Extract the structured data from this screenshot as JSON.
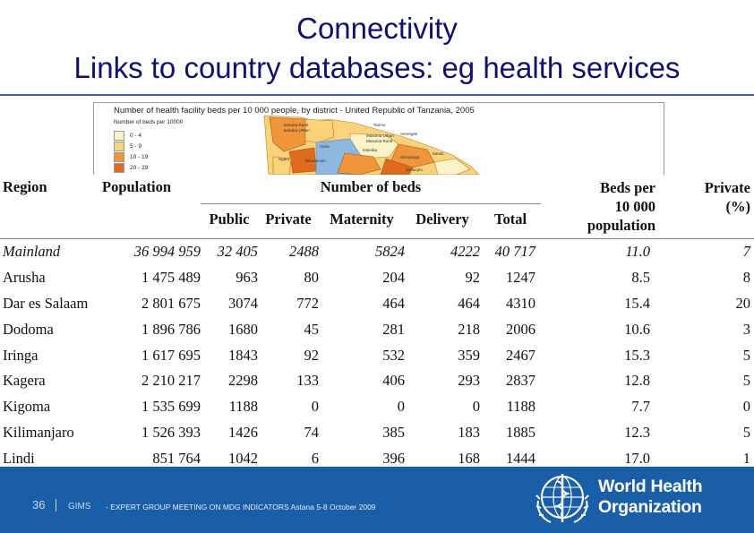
{
  "slide": {
    "title_line1": "Connectivity",
    "title_line2": "Links to country databases: eg health services"
  },
  "map": {
    "title": "Number of health facility beds per 10 000 people, by district - United Republic of Tanzania, 2005",
    "legend_title": "Number of beds per 10000",
    "legend": [
      {
        "label": "0 - 4",
        "color": "#fbf3c7"
      },
      {
        "label": "5 - 9",
        "color": "#f9d27a"
      },
      {
        "label": "10 - 19",
        "color": "#f0953a"
      },
      {
        "label": "20 - 29",
        "color": "#e06a1e"
      }
    ],
    "district_labels": [
      "Bukoba Rural",
      "Bukoba Urban",
      "Tarime",
      "Musoma Urban",
      "Musoma Rural",
      "Serengeti",
      "Geita",
      "Kwimba",
      "Shinyanga",
      "Meatu",
      "Ngara",
      "Biharamulo",
      "Simanjiro"
    ]
  },
  "table": {
    "headers": {
      "region": "Region",
      "population": "Population",
      "beds_group": "Number of beds",
      "public": "Public",
      "private": "Private",
      "maternity": "Maternity",
      "delivery": "Delivery",
      "total": "Total",
      "beds_per_line1": "Beds per",
      "beds_per_line2": "10 000",
      "beds_per_line3": "population",
      "private_pct_line1": "Private",
      "private_pct_line2": "(%)"
    },
    "rows": [
      {
        "region": "Mainland",
        "population": "36 994 959",
        "public": "32 405",
        "private": "2488",
        "maternity": "5824",
        "delivery": "4222",
        "total": "40 717",
        "beds_per": "11.0",
        "private_pct": "7"
      },
      {
        "region": "Arusha",
        "population": "1 475 489",
        "public": "963",
        "private": "80",
        "maternity": "204",
        "delivery": "92",
        "total": "1247",
        "beds_per": "8.5",
        "private_pct": "8"
      },
      {
        "region": "Dar es Salaam",
        "population": "2 801 675",
        "public": "3074",
        "private": "772",
        "maternity": "464",
        "delivery": "464",
        "total": "4310",
        "beds_per": "15.4",
        "private_pct": "20"
      },
      {
        "region": "Dodoma",
        "population": "1 896 786",
        "public": "1680",
        "private": "45",
        "maternity": "281",
        "delivery": "218",
        "total": "2006",
        "beds_per": "10.6",
        "private_pct": "3"
      },
      {
        "region": "Iringa",
        "population": "1 617 695",
        "public": "1843",
        "private": "92",
        "maternity": "532",
        "delivery": "359",
        "total": "2467",
        "beds_per": "15.3",
        "private_pct": "5"
      },
      {
        "region": "Kagera",
        "population": "2 210 217",
        "public": "2298",
        "private": "133",
        "maternity": "406",
        "delivery": "293",
        "total": "2837",
        "beds_per": "12.8",
        "private_pct": "5"
      },
      {
        "region": "Kigoma",
        "population": "1 535 699",
        "public": "1188",
        "private": "0",
        "maternity": "0",
        "delivery": "0",
        "total": "1188",
        "beds_per": "7.7",
        "private_pct": "0"
      },
      {
        "region": "Kilimanjaro",
        "population": "1 526 393",
        "public": "1426",
        "private": "74",
        "maternity": "385",
        "delivery": "183",
        "total": "1885",
        "beds_per": "12.3",
        "private_pct": "5"
      },
      {
        "region": "Lindi",
        "population": "851 764",
        "public": "1042",
        "private": "6",
        "maternity": "396",
        "delivery": "168",
        "total": "1444",
        "beds_per": "17.0",
        "private_pct": "1"
      }
    ]
  },
  "footer": {
    "page_number": "36",
    "org": "GIMS",
    "text": "- EXPERT GROUP MEETING ON MDG INDICATORS Astana 5-8 October 2009",
    "who_line1": "World Health",
    "who_line2": "Organization",
    "background_color": "#1a5ea8"
  }
}
